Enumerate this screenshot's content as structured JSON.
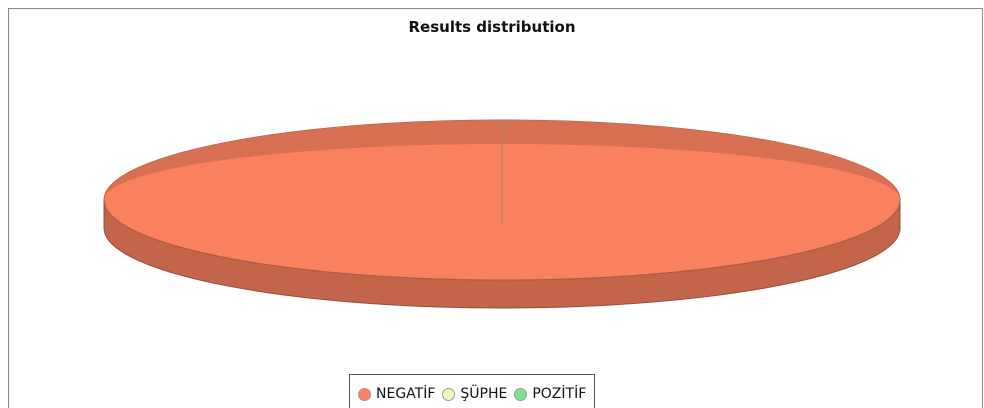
{
  "chart_data": {
    "type": "pie",
    "title": "Results distribution",
    "slices": [
      {
        "label": "NEGATİF",
        "value": 100,
        "color": "#fa8160"
      },
      {
        "label": "ŞÜPHE",
        "value": 0,
        "color": "#f4f4b8"
      },
      {
        "label": "POZİTİF",
        "value": 0,
        "color": "#7fe08a"
      }
    ],
    "legend_position": "bottom",
    "three_d": true
  }
}
